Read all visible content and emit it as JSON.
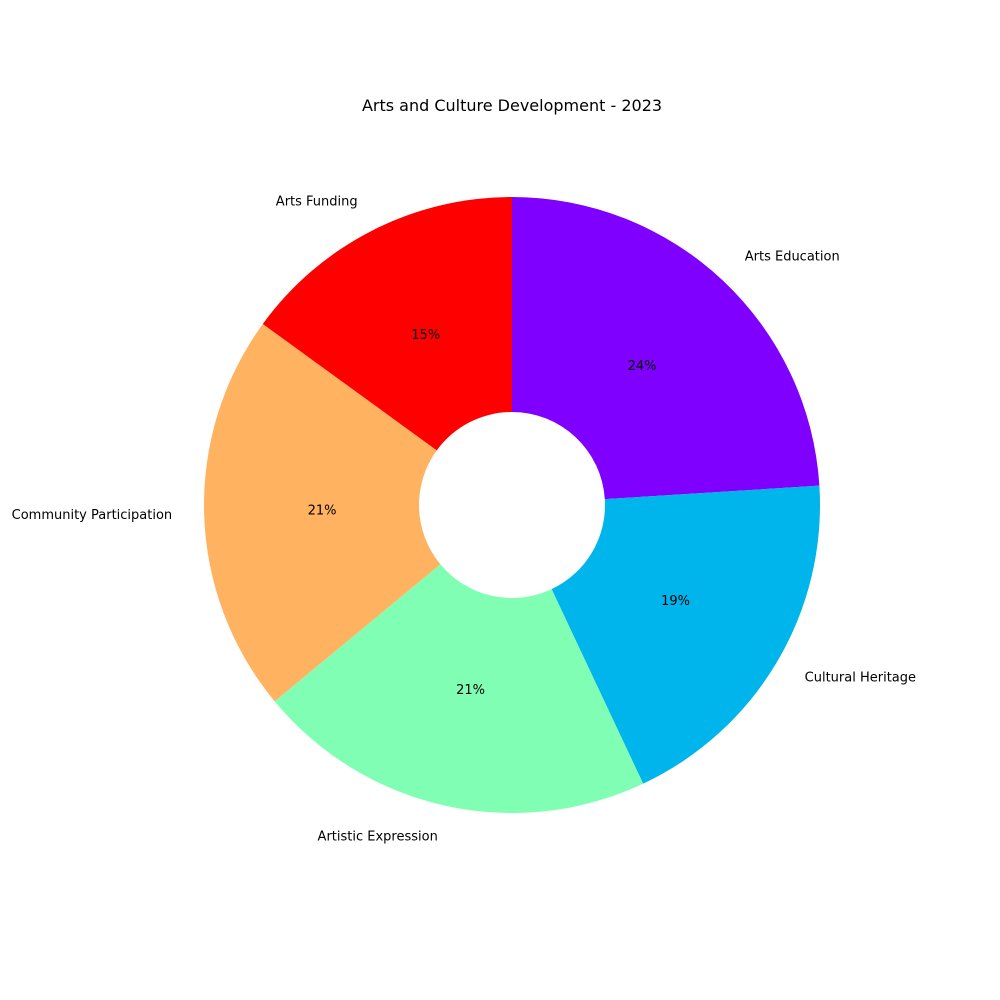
{
  "chart_data": {
    "type": "pie",
    "title": "Arts and Culture Development - 2023",
    "donut": true,
    "start_angle_deg": 90,
    "direction": "clockwise",
    "categories": [
      "Arts Education",
      "Cultural Heritage",
      "Artistic Expression",
      "Community Participation",
      "Arts Funding"
    ],
    "values": [
      24,
      19,
      21,
      21,
      15
    ],
    "percent_labels": [
      "24%",
      "19%",
      "21%",
      "21%",
      "15%"
    ],
    "colors": [
      "#8000ff",
      "#00b5eb",
      "#80ffb4",
      "#ffb360",
      "#ff0000"
    ]
  }
}
